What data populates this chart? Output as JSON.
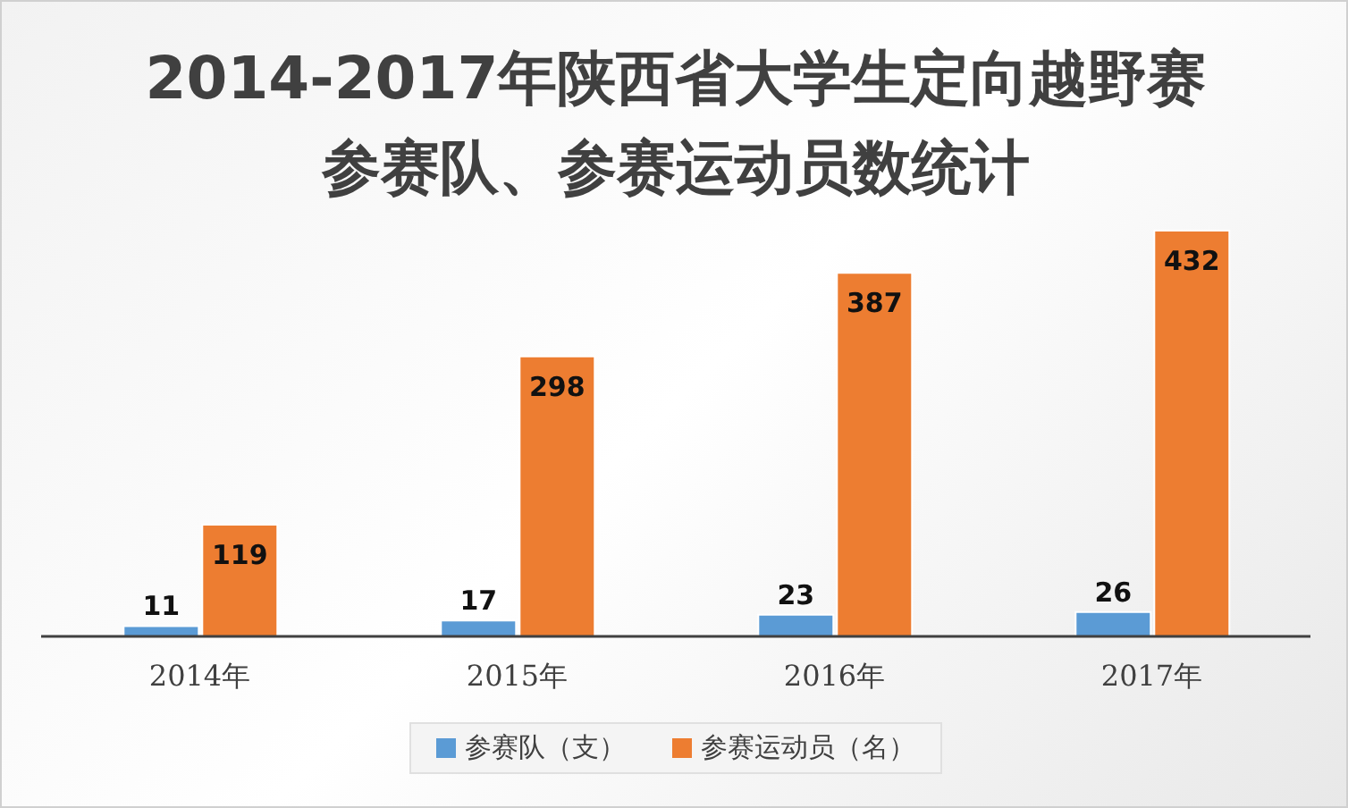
{
  "chart_data": {
    "type": "bar",
    "title": "2014-2017年陕西省大学生定向越野赛参赛队、参赛运动员数统计",
    "categories": [
      "2014年",
      "2015年",
      "2016年",
      "2017年"
    ],
    "series": [
      {
        "name": "参赛队（支）",
        "color": "#5b9bd5",
        "values": [
          11,
          17,
          23,
          26
        ]
      },
      {
        "name": "参赛运动员（名）",
        "color": "#ed7d31",
        "values": [
          119,
          298,
          387,
          432
        ]
      }
    ],
    "data_labels": true,
    "legend": "bottom",
    "grid": false
  }
}
